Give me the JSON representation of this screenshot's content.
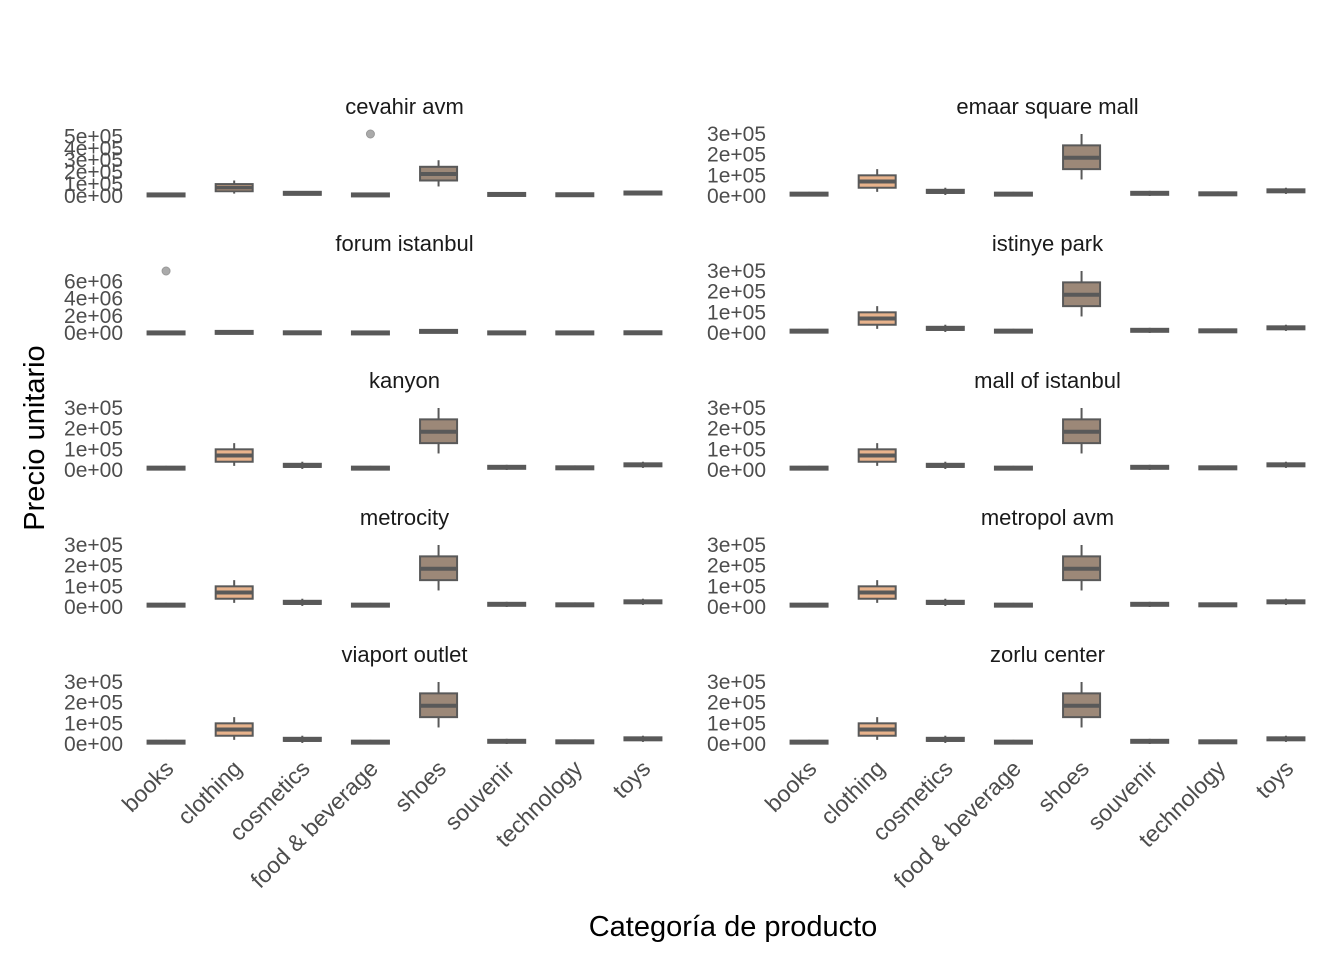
{
  "chart_data": {
    "type": "boxplot",
    "xlabel": "Categoría de producto",
    "ylabel": "Precio unitario",
    "categories": [
      "books",
      "clothing",
      "cosmetics",
      "food & beverage",
      "shoes",
      "souvenir",
      "technology",
      "toys"
    ],
    "colors": {
      "books": "#9c8878",
      "clothing": "#e8b38c",
      "cosmetics": "#9c8878",
      "food & beverage": "#9c8878",
      "shoes": "#9c8878",
      "souvenir": "#9c8878",
      "technology": "#9c8878",
      "toys": "#9c8878",
      "line": "#595959",
      "outlier": "#aaaaaa"
    },
    "facets": [
      {
        "name": "cevahir avm",
        "ylim": [
          0,
          520000
        ],
        "yticks": [
          0,
          100000,
          200000,
          300000,
          400000,
          500000
        ],
        "ytick_labels": [
          "0e+00",
          "1e+05",
          "2e+05",
          "3e+05",
          "4e+05",
          "5e+05"
        ],
        "boxes": [
          {
            "category": "books",
            "min": 0,
            "q1": 5000,
            "median": 9000,
            "q3": 13000,
            "max": 20000
          },
          {
            "category": "clothing",
            "min": 20000,
            "q1": 40000,
            "median": 70000,
            "q3": 100000,
            "max": 130000
          },
          {
            "category": "cosmetics",
            "min": 5000,
            "q1": 15000,
            "median": 20000,
            "q3": 30000,
            "max": 40000
          },
          {
            "category": "food & beverage",
            "min": 0,
            "q1": 5000,
            "median": 8000,
            "q3": 13000,
            "max": 20000
          },
          {
            "category": "shoes",
            "min": 80000,
            "q1": 130000,
            "median": 185000,
            "q3": 245000,
            "max": 300000
          },
          {
            "category": "souvenir",
            "min": 0,
            "q1": 8000,
            "median": 12000,
            "q3": 18000,
            "max": 25000
          },
          {
            "category": "technology",
            "min": 0,
            "q1": 6000,
            "median": 10000,
            "q3": 15000,
            "max": 22000
          },
          {
            "category": "toys",
            "min": 10000,
            "q1": 18000,
            "median": 25000,
            "q3": 32000,
            "max": 40000
          }
        ],
        "outliers": [
          {
            "category": "food & beverage",
            "value": 520000
          }
        ]
      },
      {
        "name": "emaar square mall",
        "ylim": [
          0,
          300000
        ],
        "yticks": [
          0,
          100000,
          200000,
          300000
        ],
        "ytick_labels": [
          "0e+00",
          "1e+05",
          "2e+05",
          "3e+05"
        ],
        "boxes": [
          {
            "category": "books",
            "min": 0,
            "q1": 5000,
            "median": 9000,
            "q3": 13000,
            "max": 20000
          },
          {
            "category": "clothing",
            "min": 20000,
            "q1": 40000,
            "median": 70000,
            "q3": 100000,
            "max": 130000
          },
          {
            "category": "cosmetics",
            "min": 5000,
            "q1": 15000,
            "median": 20000,
            "q3": 30000,
            "max": 40000
          },
          {
            "category": "food & beverage",
            "min": 0,
            "q1": 5000,
            "median": 8000,
            "q3": 13000,
            "max": 20000
          },
          {
            "category": "shoes",
            "min": 80000,
            "q1": 130000,
            "median": 185000,
            "q3": 245000,
            "max": 300000
          },
          {
            "category": "souvenir",
            "min": 0,
            "q1": 8000,
            "median": 12000,
            "q3": 18000,
            "max": 25000
          },
          {
            "category": "technology",
            "min": 0,
            "q1": 6000,
            "median": 10000,
            "q3": 15000,
            "max": 22000
          },
          {
            "category": "toys",
            "min": 10000,
            "q1": 18000,
            "median": 25000,
            "q3": 32000,
            "max": 40000
          }
        ],
        "outliers": []
      },
      {
        "name": "forum istanbul",
        "ylim": [
          0,
          7200000
        ],
        "yticks": [
          0,
          2000000,
          4000000,
          6000000
        ],
        "ytick_labels": [
          "0e+00",
          "2e+06",
          "4e+06",
          "6e+06"
        ],
        "boxes": [
          {
            "category": "books",
            "min": 0,
            "q1": 5000,
            "median": 9000,
            "q3": 13000,
            "max": 20000
          },
          {
            "category": "clothing",
            "min": 20000,
            "q1": 40000,
            "median": 70000,
            "q3": 100000,
            "max": 130000
          },
          {
            "category": "cosmetics",
            "min": 5000,
            "q1": 15000,
            "median": 20000,
            "q3": 30000,
            "max": 40000
          },
          {
            "category": "food & beverage",
            "min": 0,
            "q1": 5000,
            "median": 8000,
            "q3": 13000,
            "max": 20000
          },
          {
            "category": "shoes",
            "min": 80000,
            "q1": 130000,
            "median": 185000,
            "q3": 245000,
            "max": 300000
          },
          {
            "category": "souvenir",
            "min": 0,
            "q1": 8000,
            "median": 12000,
            "q3": 18000,
            "max": 25000
          },
          {
            "category": "technology",
            "min": 0,
            "q1": 6000,
            "median": 10000,
            "q3": 15000,
            "max": 22000
          },
          {
            "category": "toys",
            "min": 10000,
            "q1": 18000,
            "median": 25000,
            "q3": 32000,
            "max": 40000
          }
        ],
        "outliers": [
          {
            "category": "books",
            "value": 7200000
          }
        ]
      },
      {
        "name": "istinye park",
        "ylim": [
          0,
          300000
        ],
        "yticks": [
          0,
          100000,
          200000,
          300000
        ],
        "ytick_labels": [
          "0e+00",
          "1e+05",
          "2e+05",
          "3e+05"
        ],
        "boxes": [
          {
            "category": "books",
            "min": 0,
            "q1": 5000,
            "median": 9000,
            "q3": 13000,
            "max": 20000
          },
          {
            "category": "clothing",
            "min": 20000,
            "q1": 40000,
            "median": 70000,
            "q3": 100000,
            "max": 130000
          },
          {
            "category": "cosmetics",
            "min": 5000,
            "q1": 15000,
            "median": 20000,
            "q3": 30000,
            "max": 40000
          },
          {
            "category": "food & beverage",
            "min": 0,
            "q1": 5000,
            "median": 8000,
            "q3": 13000,
            "max": 20000
          },
          {
            "category": "shoes",
            "min": 80000,
            "q1": 130000,
            "median": 185000,
            "q3": 245000,
            "max": 300000
          },
          {
            "category": "souvenir",
            "min": 0,
            "q1": 8000,
            "median": 12000,
            "q3": 18000,
            "max": 25000
          },
          {
            "category": "technology",
            "min": 0,
            "q1": 6000,
            "median": 10000,
            "q3": 15000,
            "max": 22000
          },
          {
            "category": "toys",
            "min": 10000,
            "q1": 18000,
            "median": 25000,
            "q3": 32000,
            "max": 40000
          }
        ],
        "outliers": []
      },
      {
        "name": "kanyon",
        "ylim": [
          0,
          300000
        ],
        "yticks": [
          0,
          100000,
          200000,
          300000
        ],
        "ytick_labels": [
          "0e+00",
          "1e+05",
          "2e+05",
          "3e+05"
        ],
        "boxes": [
          {
            "category": "books",
            "min": 0,
            "q1": 5000,
            "median": 9000,
            "q3": 13000,
            "max": 20000
          },
          {
            "category": "clothing",
            "min": 20000,
            "q1": 40000,
            "median": 70000,
            "q3": 100000,
            "max": 130000
          },
          {
            "category": "cosmetics",
            "min": 5000,
            "q1": 15000,
            "median": 20000,
            "q3": 30000,
            "max": 40000
          },
          {
            "category": "food & beverage",
            "min": 0,
            "q1": 5000,
            "median": 8000,
            "q3": 13000,
            "max": 20000
          },
          {
            "category": "shoes",
            "min": 80000,
            "q1": 130000,
            "median": 185000,
            "q3": 245000,
            "max": 300000
          },
          {
            "category": "souvenir",
            "min": 0,
            "q1": 8000,
            "median": 12000,
            "q3": 18000,
            "max": 25000
          },
          {
            "category": "technology",
            "min": 0,
            "q1": 6000,
            "median": 10000,
            "q3": 15000,
            "max": 22000
          },
          {
            "category": "toys",
            "min": 10000,
            "q1": 18000,
            "median": 25000,
            "q3": 32000,
            "max": 40000
          }
        ],
        "outliers": []
      },
      {
        "name": "mall of istanbul",
        "ylim": [
          0,
          300000
        ],
        "yticks": [
          0,
          100000,
          200000,
          300000
        ],
        "ytick_labels": [
          "0e+00",
          "1e+05",
          "2e+05",
          "3e+05"
        ],
        "boxes": [
          {
            "category": "books",
            "min": 0,
            "q1": 5000,
            "median": 9000,
            "q3": 13000,
            "max": 20000
          },
          {
            "category": "clothing",
            "min": 20000,
            "q1": 40000,
            "median": 70000,
            "q3": 100000,
            "max": 130000
          },
          {
            "category": "cosmetics",
            "min": 5000,
            "q1": 15000,
            "median": 20000,
            "q3": 30000,
            "max": 40000
          },
          {
            "category": "food & beverage",
            "min": 0,
            "q1": 5000,
            "median": 8000,
            "q3": 13000,
            "max": 20000
          },
          {
            "category": "shoes",
            "min": 80000,
            "q1": 130000,
            "median": 185000,
            "q3": 245000,
            "max": 300000
          },
          {
            "category": "souvenir",
            "min": 0,
            "q1": 8000,
            "median": 12000,
            "q3": 18000,
            "max": 25000
          },
          {
            "category": "technology",
            "min": 0,
            "q1": 6000,
            "median": 10000,
            "q3": 15000,
            "max": 22000
          },
          {
            "category": "toys",
            "min": 10000,
            "q1": 18000,
            "median": 25000,
            "q3": 32000,
            "max": 40000
          }
        ],
        "outliers": []
      },
      {
        "name": "metrocity",
        "ylim": [
          0,
          300000
        ],
        "yticks": [
          0,
          100000,
          200000,
          300000
        ],
        "ytick_labels": [
          "0e+00",
          "1e+05",
          "2e+05",
          "3e+05"
        ],
        "boxes": [
          {
            "category": "books",
            "min": 0,
            "q1": 5000,
            "median": 9000,
            "q3": 13000,
            "max": 20000
          },
          {
            "category": "clothing",
            "min": 20000,
            "q1": 40000,
            "median": 70000,
            "q3": 100000,
            "max": 130000
          },
          {
            "category": "cosmetics",
            "min": 5000,
            "q1": 15000,
            "median": 20000,
            "q3": 30000,
            "max": 40000
          },
          {
            "category": "food & beverage",
            "min": 0,
            "q1": 5000,
            "median": 8000,
            "q3": 13000,
            "max": 20000
          },
          {
            "category": "shoes",
            "min": 80000,
            "q1": 130000,
            "median": 185000,
            "q3": 245000,
            "max": 300000
          },
          {
            "category": "souvenir",
            "min": 0,
            "q1": 8000,
            "median": 12000,
            "q3": 18000,
            "max": 25000
          },
          {
            "category": "technology",
            "min": 0,
            "q1": 6000,
            "median": 10000,
            "q3": 15000,
            "max": 22000
          },
          {
            "category": "toys",
            "min": 10000,
            "q1": 18000,
            "median": 25000,
            "q3": 32000,
            "max": 40000
          }
        ],
        "outliers": []
      },
      {
        "name": "metropol avm",
        "ylim": [
          0,
          300000
        ],
        "yticks": [
          0,
          100000,
          200000,
          300000
        ],
        "ytick_labels": [
          "0e+00",
          "1e+05",
          "2e+05",
          "3e+05"
        ],
        "boxes": [
          {
            "category": "books",
            "min": 0,
            "q1": 5000,
            "median": 9000,
            "q3": 13000,
            "max": 20000
          },
          {
            "category": "clothing",
            "min": 20000,
            "q1": 40000,
            "median": 70000,
            "q3": 100000,
            "max": 130000
          },
          {
            "category": "cosmetics",
            "min": 5000,
            "q1": 15000,
            "median": 20000,
            "q3": 30000,
            "max": 40000
          },
          {
            "category": "food & beverage",
            "min": 0,
            "q1": 5000,
            "median": 8000,
            "q3": 13000,
            "max": 20000
          },
          {
            "category": "shoes",
            "min": 80000,
            "q1": 130000,
            "median": 185000,
            "q3": 245000,
            "max": 300000
          },
          {
            "category": "souvenir",
            "min": 0,
            "q1": 8000,
            "median": 12000,
            "q3": 18000,
            "max": 25000
          },
          {
            "category": "technology",
            "min": 0,
            "q1": 6000,
            "median": 10000,
            "q3": 15000,
            "max": 22000
          },
          {
            "category": "toys",
            "min": 10000,
            "q1": 18000,
            "median": 25000,
            "q3": 32000,
            "max": 40000
          }
        ],
        "outliers": []
      },
      {
        "name": "viaport outlet",
        "ylim": [
          0,
          300000
        ],
        "yticks": [
          0,
          100000,
          200000,
          300000
        ],
        "ytick_labels": [
          "0e+00",
          "1e+05",
          "2e+05",
          "3e+05"
        ],
        "boxes": [
          {
            "category": "books",
            "min": 0,
            "q1": 5000,
            "median": 9000,
            "q3": 13000,
            "max": 20000
          },
          {
            "category": "clothing",
            "min": 20000,
            "q1": 40000,
            "median": 70000,
            "q3": 100000,
            "max": 130000
          },
          {
            "category": "cosmetics",
            "min": 5000,
            "q1": 15000,
            "median": 20000,
            "q3": 30000,
            "max": 40000
          },
          {
            "category": "food & beverage",
            "min": 0,
            "q1": 5000,
            "median": 8000,
            "q3": 13000,
            "max": 20000
          },
          {
            "category": "shoes",
            "min": 80000,
            "q1": 130000,
            "median": 185000,
            "q3": 245000,
            "max": 300000
          },
          {
            "category": "souvenir",
            "min": 0,
            "q1": 8000,
            "median": 12000,
            "q3": 18000,
            "max": 25000
          },
          {
            "category": "technology",
            "min": 0,
            "q1": 6000,
            "median": 10000,
            "q3": 15000,
            "max": 22000
          },
          {
            "category": "toys",
            "min": 10000,
            "q1": 18000,
            "median": 25000,
            "q3": 32000,
            "max": 40000
          }
        ],
        "outliers": []
      },
      {
        "name": "zorlu center",
        "ylim": [
          0,
          300000
        ],
        "yticks": [
          0,
          100000,
          200000,
          300000
        ],
        "ytick_labels": [
          "0e+00",
          "1e+05",
          "2e+05",
          "3e+05"
        ],
        "boxes": [
          {
            "category": "books",
            "min": 0,
            "q1": 5000,
            "median": 9000,
            "q3": 13000,
            "max": 20000
          },
          {
            "category": "clothing",
            "min": 20000,
            "q1": 40000,
            "median": 70000,
            "q3": 100000,
            "max": 130000
          },
          {
            "category": "cosmetics",
            "min": 5000,
            "q1": 15000,
            "median": 20000,
            "q3": 30000,
            "max": 40000
          },
          {
            "category": "food & beverage",
            "min": 0,
            "q1": 5000,
            "median": 8000,
            "q3": 13000,
            "max": 20000
          },
          {
            "category": "shoes",
            "min": 80000,
            "q1": 130000,
            "median": 185000,
            "q3": 245000,
            "max": 300000
          },
          {
            "category": "souvenir",
            "min": 0,
            "q1": 8000,
            "median": 12000,
            "q3": 18000,
            "max": 25000
          },
          {
            "category": "technology",
            "min": 0,
            "q1": 6000,
            "median": 10000,
            "q3": 15000,
            "max": 22000
          },
          {
            "category": "toys",
            "min": 10000,
            "q1": 18000,
            "median": 25000,
            "q3": 32000,
            "max": 40000
          }
        ],
        "outliers": []
      }
    ]
  }
}
